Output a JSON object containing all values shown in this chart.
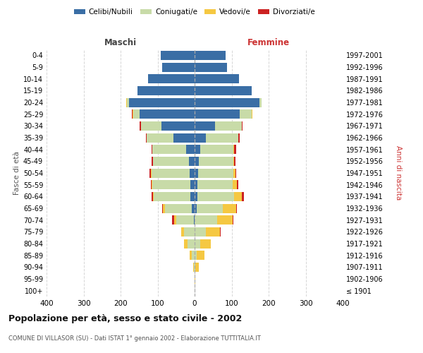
{
  "age_groups": [
    "100+",
    "95-99",
    "90-94",
    "85-89",
    "80-84",
    "75-79",
    "70-74",
    "65-69",
    "60-64",
    "55-59",
    "50-54",
    "45-49",
    "40-44",
    "35-39",
    "30-34",
    "25-29",
    "20-24",
    "15-19",
    "10-14",
    "5-9",
    "0-4"
  ],
  "birth_years": [
    "≤ 1901",
    "1902-1906",
    "1907-1911",
    "1912-1916",
    "1917-1921",
    "1922-1926",
    "1927-1931",
    "1932-1936",
    "1937-1941",
    "1942-1946",
    "1947-1951",
    "1952-1956",
    "1957-1961",
    "1962-1966",
    "1967-1971",
    "1972-1976",
    "1977-1981",
    "1982-1986",
    "1987-1991",
    "1992-1996",
    "1997-2001"
  ],
  "male_celibi": [
    0,
    0,
    0,
    0,
    0,
    0,
    2,
    8,
    12,
    12,
    14,
    15,
    22,
    58,
    90,
    148,
    178,
    155,
    125,
    88,
    92
  ],
  "male_coniugati": [
    0,
    0,
    2,
    8,
    20,
    28,
    48,
    72,
    98,
    102,
    102,
    97,
    92,
    72,
    55,
    18,
    5,
    0,
    0,
    0,
    0
  ],
  "male_vedovi": [
    0,
    0,
    2,
    5,
    8,
    8,
    6,
    6,
    3,
    2,
    2,
    1,
    1,
    0,
    0,
    2,
    2,
    0,
    0,
    0,
    0
  ],
  "male_divorziati": [
    0,
    0,
    0,
    0,
    1,
    1,
    5,
    2,
    3,
    3,
    3,
    3,
    2,
    2,
    3,
    2,
    0,
    0,
    0,
    0,
    0
  ],
  "female_celibi": [
    0,
    0,
    0,
    0,
    0,
    0,
    0,
    5,
    8,
    8,
    10,
    12,
    15,
    30,
    55,
    122,
    175,
    155,
    120,
    88,
    83
  ],
  "female_coniugati": [
    0,
    0,
    2,
    5,
    15,
    30,
    60,
    72,
    98,
    95,
    95,
    92,
    90,
    88,
    72,
    32,
    5,
    0,
    0,
    0,
    0
  ],
  "female_vedovi": [
    0,
    2,
    10,
    22,
    28,
    38,
    42,
    35,
    22,
    12,
    5,
    3,
    2,
    0,
    0,
    2,
    0,
    0,
    0,
    0,
    0
  ],
  "female_divorziati": [
    0,
    0,
    0,
    0,
    0,
    2,
    3,
    2,
    5,
    3,
    3,
    3,
    5,
    3,
    3,
    0,
    0,
    0,
    0,
    0,
    0
  ],
  "colors": {
    "celibi": "#3a6ea5",
    "coniugati": "#c8dba8",
    "vedovi": "#f5c842",
    "divorziati": "#cc2222"
  },
  "title": "Popolazione per età, sesso e stato civile - 2002",
  "subtitle": "COMUNE DI VILLASOR (SU) - Dati ISTAT 1° gennaio 2002 - Elaborazione TUTTITALIA.IT",
  "label_maschi": "Maschi",
  "label_femmine": "Femmine",
  "ylabel_left": "Fasce di età",
  "ylabel_right": "Anni di nascita",
  "legend_labels": [
    "Celibi/Nubili",
    "Coniugati/e",
    "Vedovi/e",
    "Divorziati/e"
  ],
  "xlim": 400,
  "bg_color": "#ffffff",
  "grid_color": "#cccccc"
}
